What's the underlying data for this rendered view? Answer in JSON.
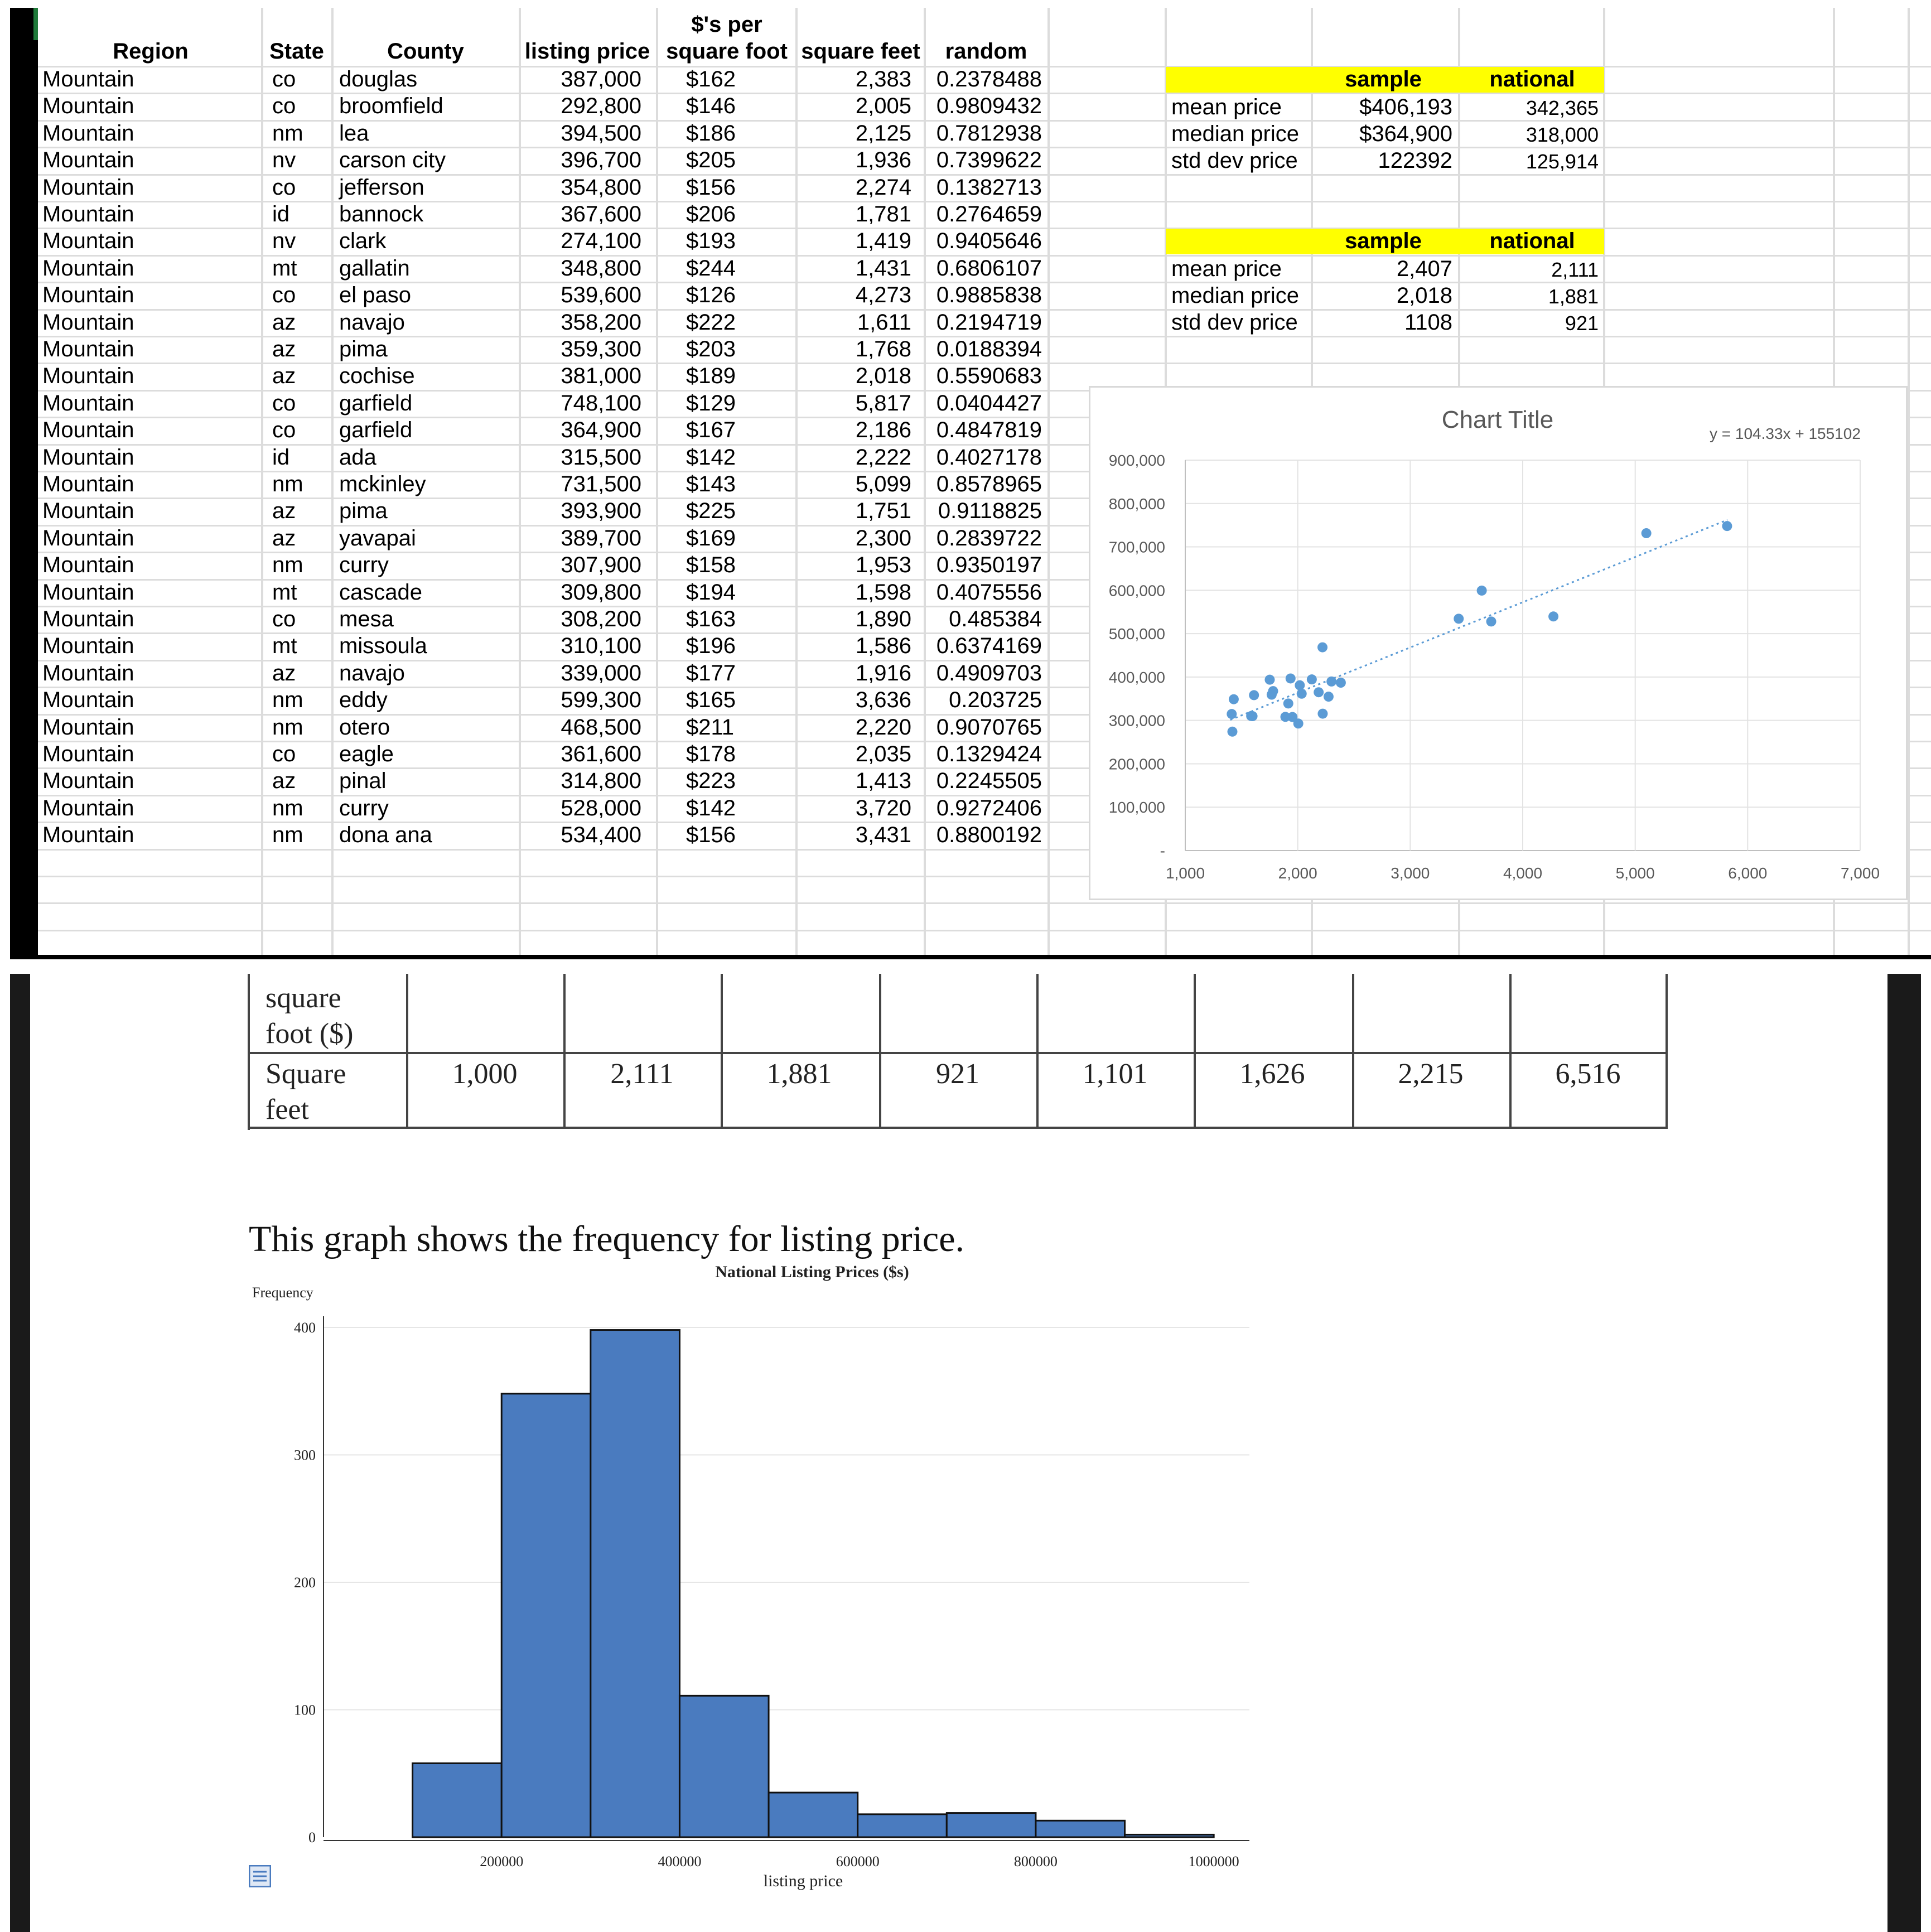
{
  "spreadsheet": {
    "headers": {
      "region": "Region",
      "state": "State",
      "county": "County",
      "listing_price": "listing price",
      "per_sqft_line1": "$'s per",
      "per_sqft_line2": "square foot",
      "square_feet": "square feet",
      "random": "random"
    },
    "rows": [
      [
        "Mountain",
        "co",
        "douglas",
        "387,000",
        "$162",
        "2,383",
        "0.2378488"
      ],
      [
        "Mountain",
        "co",
        "broomfield",
        "292,800",
        "$146",
        "2,005",
        "0.9809432"
      ],
      [
        "Mountain",
        "nm",
        "lea",
        "394,500",
        "$186",
        "2,125",
        "0.7812938"
      ],
      [
        "Mountain",
        "nv",
        "carson city",
        "396,700",
        "$205",
        "1,936",
        "0.7399622"
      ],
      [
        "Mountain",
        "co",
        "jefferson",
        "354,800",
        "$156",
        "2,274",
        "0.1382713"
      ],
      [
        "Mountain",
        "id",
        "bannock",
        "367,600",
        "$206",
        "1,781",
        "0.2764659"
      ],
      [
        "Mountain",
        "nv",
        "clark",
        "274,100",
        "$193",
        "1,419",
        "0.9405646"
      ],
      [
        "Mountain",
        "mt",
        "gallatin",
        "348,800",
        "$244",
        "1,431",
        "0.6806107"
      ],
      [
        "Mountain",
        "co",
        "el paso",
        "539,600",
        "$126",
        "4,273",
        "0.9885838"
      ],
      [
        "Mountain",
        "az",
        "navajo",
        "358,200",
        "$222",
        "1,611",
        "0.2194719"
      ],
      [
        "Mountain",
        "az",
        "pima",
        "359,300",
        "$203",
        "1,768",
        "0.0188394"
      ],
      [
        "Mountain",
        "az",
        "cochise",
        "381,000",
        "$189",
        "2,018",
        "0.5590683"
      ],
      [
        "Mountain",
        "co",
        "garfield",
        "748,100",
        "$129",
        "5,817",
        "0.0404427"
      ],
      [
        "Mountain",
        "co",
        "garfield",
        "364,900",
        "$167",
        "2,186",
        "0.4847819"
      ],
      [
        "Mountain",
        "id",
        "ada",
        "315,500",
        "$142",
        "2,222",
        "0.4027178"
      ],
      [
        "Mountain",
        "nm",
        "mckinley",
        "731,500",
        "$143",
        "5,099",
        "0.8578965"
      ],
      [
        "Mountain",
        "az",
        "pima",
        "393,900",
        "$225",
        "1,751",
        "0.9118825"
      ],
      [
        "Mountain",
        "az",
        "yavapai",
        "389,700",
        "$169",
        "2,300",
        "0.2839722"
      ],
      [
        "Mountain",
        "nm",
        "curry",
        "307,900",
        "$158",
        "1,953",
        "0.9350197"
      ],
      [
        "Mountain",
        "mt",
        "cascade",
        "309,800",
        "$194",
        "1,598",
        "0.4075556"
      ],
      [
        "Mountain",
        "co",
        "mesa",
        "308,200",
        "$163",
        "1,890",
        "0.485384"
      ],
      [
        "Mountain",
        "mt",
        "missoula",
        "310,100",
        "$196",
        "1,586",
        "0.6374169"
      ],
      [
        "Mountain",
        "az",
        "navajo",
        "339,000",
        "$177",
        "1,916",
        "0.4909703"
      ],
      [
        "Mountain",
        "nm",
        "eddy",
        "599,300",
        "$165",
        "3,636",
        "0.203725"
      ],
      [
        "Mountain",
        "nm",
        "otero",
        "468,500",
        "$211",
        "2,220",
        "0.9070765"
      ],
      [
        "Mountain",
        "co",
        "eagle",
        "361,600",
        "$178",
        "2,035",
        "0.1329424"
      ],
      [
        "Mountain",
        "az",
        "pinal",
        "314,800",
        "$223",
        "1,413",
        "0.2245505"
      ],
      [
        "Mountain",
        "nm",
        "curry",
        "528,000",
        "$142",
        "3,720",
        "0.9272406"
      ],
      [
        "Mountain",
        "nm",
        "dona ana",
        "534,400",
        "$156",
        "3,431",
        "0.8800192"
      ]
    ],
    "stats1": {
      "header_sample": "sample",
      "header_national": "national",
      "rows": [
        {
          "label": "mean price",
          "sample": "$406,193",
          "national": "342,365"
        },
        {
          "label": "median price",
          "sample": "$364,900",
          "national": "318,000"
        },
        {
          "label": "std dev price",
          "sample": "122392",
          "national": "125,914"
        }
      ]
    },
    "stats2": {
      "header_sample": "sample",
      "header_national": "national",
      "rows": [
        {
          "label": "mean price",
          "sample": "2,407",
          "national": "2,111"
        },
        {
          "label": "median price",
          "sample": "2,018",
          "national": "1,881"
        },
        {
          "label": "std dev price",
          "sample": "1108",
          "national": "921"
        }
      ]
    },
    "highlight_color": "#ffff00"
  },
  "chart_data": [
    {
      "type": "scatter",
      "title": "Chart Title",
      "trendline_label": "y = 104.33x + 155102",
      "trendline": {
        "slope": 104.33,
        "intercept": 155102
      },
      "xlim": [
        1000,
        7000
      ],
      "ylim": [
        0,
        900000
      ],
      "xticks": [
        "1,000",
        "2,000",
        "3,000",
        "4,000",
        "5,000",
        "6,000",
        "7,000"
      ],
      "yticks": [
        "-",
        "100,000",
        "200,000",
        "300,000",
        "400,000",
        "500,000",
        "600,000",
        "700,000",
        "800,000",
        "900,000"
      ],
      "marker_color": "#5b9bd5",
      "points": [
        [
          2383,
          387000
        ],
        [
          2005,
          292800
        ],
        [
          2125,
          394500
        ],
        [
          1936,
          396700
        ],
        [
          2274,
          354800
        ],
        [
          1781,
          367600
        ],
        [
          1419,
          274100
        ],
        [
          1431,
          348800
        ],
        [
          4273,
          539600
        ],
        [
          1611,
          358200
        ],
        [
          1768,
          359300
        ],
        [
          2018,
          381000
        ],
        [
          5817,
          748100
        ],
        [
          2186,
          364900
        ],
        [
          2222,
          315500
        ],
        [
          5099,
          731500
        ],
        [
          1751,
          393900
        ],
        [
          2300,
          389700
        ],
        [
          1953,
          307900
        ],
        [
          1598,
          309800
        ],
        [
          1890,
          308200
        ],
        [
          1586,
          310100
        ],
        [
          1916,
          339000
        ],
        [
          3636,
          599300
        ],
        [
          2220,
          468500
        ],
        [
          2035,
          361600
        ],
        [
          1413,
          314800
        ],
        [
          3720,
          528000
        ],
        [
          3431,
          534400
        ]
      ]
    },
    {
      "type": "bar",
      "title": "National Listing Prices ($s)",
      "xlabel": "listing price",
      "ylabel": "Frequency",
      "bin_edges": [
        100000,
        200000,
        300000,
        400000,
        500000,
        600000,
        700000,
        800000,
        900000,
        1000000
      ],
      "values": [
        58,
        348,
        398,
        111,
        35,
        18,
        19,
        13,
        2
      ],
      "xticks": [
        "200000",
        "400000",
        "600000",
        "800000",
        "1000000"
      ],
      "yticks": [
        "0",
        "100",
        "200",
        "300",
        "400"
      ],
      "ylim": [
        0,
        400
      ],
      "bar_color": "#4a7bbf"
    }
  ],
  "document": {
    "row1_label_line1": "square",
    "row1_label_line2": "foot ($)",
    "row2_label_line1": "Square",
    "row2_label_line2": "feet",
    "row2_values": [
      "1,000",
      "2,111",
      "1,881",
      "921",
      "1,101",
      "1,626",
      "2,215",
      "6,516"
    ],
    "caption": "This graph shows the frequency for listing price."
  }
}
